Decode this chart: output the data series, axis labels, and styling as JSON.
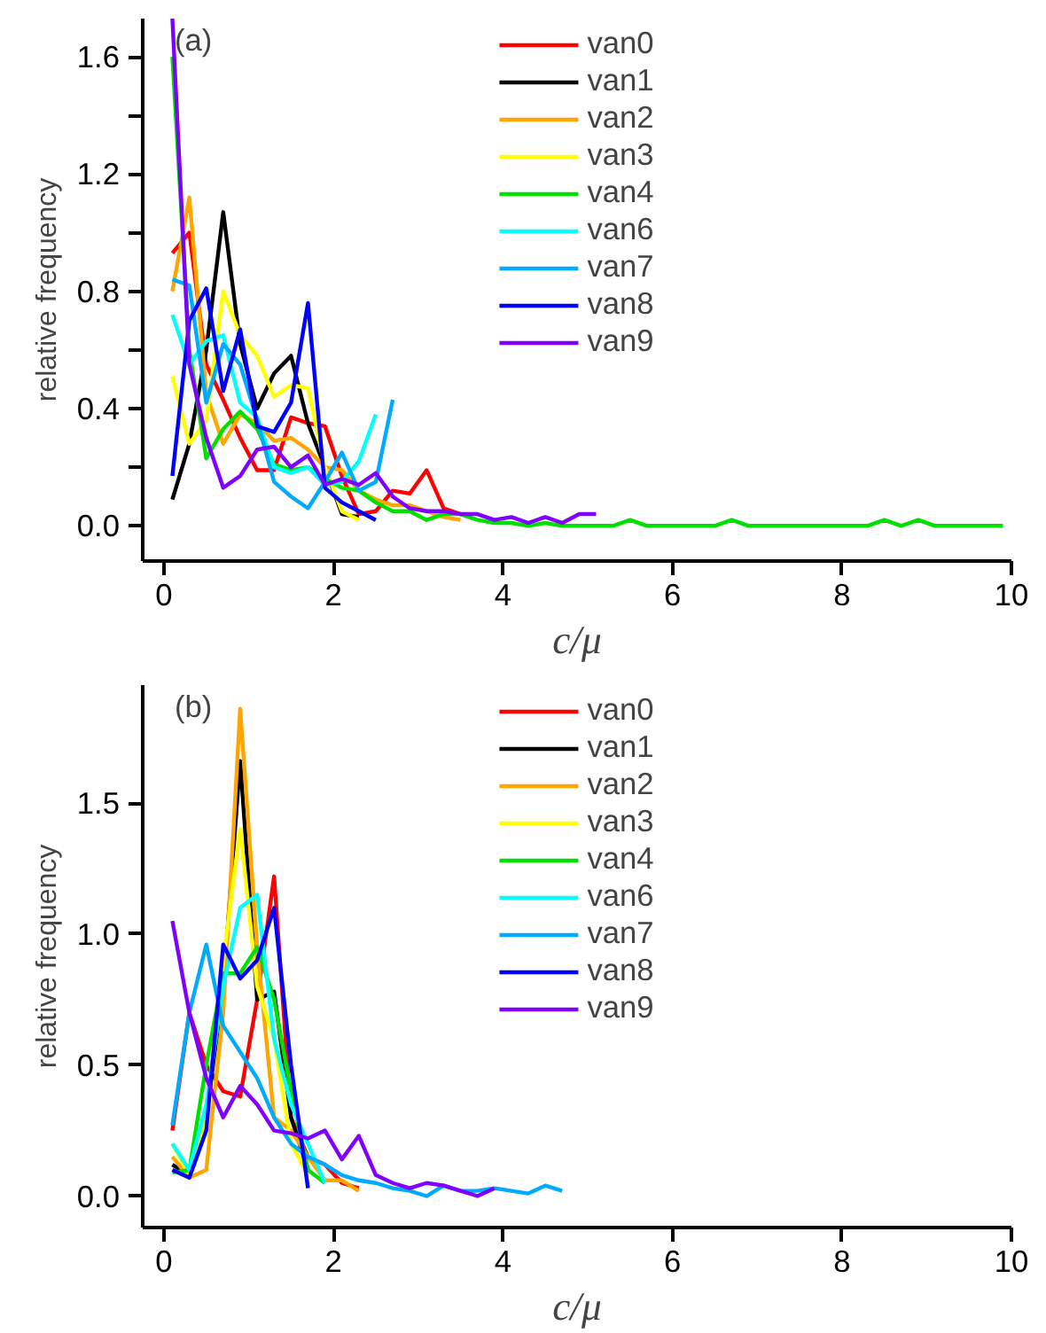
{
  "chart_data": [
    {
      "type": "line",
      "xlabel": "c/μ",
      "ylabel": "relative frequency",
      "annotations": [
        "(a)"
      ],
      "xlim": [
        -0.25,
        10
      ],
      "ylim": [
        -0.12,
        1.73
      ],
      "xticks": [
        0,
        2,
        4,
        6,
        8,
        10
      ],
      "yticks": [
        {
          "value": 0,
          "label": "0.0"
        },
        {
          "value": 0.2,
          "label": null
        },
        {
          "value": 0.4,
          "label": "0.4"
        },
        {
          "value": 0.6,
          "label": null
        },
        {
          "value": 0.8,
          "label": "0.8"
        },
        {
          "value": 1.0,
          "label": null
        },
        {
          "value": 1.2,
          "label": "1.2"
        },
        {
          "value": 1.4,
          "label": null
        },
        {
          "value": 1.6,
          "label": "1.6"
        }
      ],
      "grid": false,
      "legend": "top",
      "series": [
        {
          "name": "van0",
          "color": "#ff0000",
          "x": [
            0.1,
            0.3,
            0.5,
            0.7,
            0.9,
            1.1,
            1.3,
            1.5,
            1.7,
            1.9,
            2.1,
            2.3,
            2.5,
            2.7,
            2.9,
            3.1,
            3.3,
            3.5
          ],
          "values": [
            0.93,
            1.0,
            0.55,
            0.43,
            0.3,
            0.19,
            0.19,
            0.37,
            0.35,
            0.34,
            0.17,
            0.04,
            0.05,
            0.12,
            0.11,
            0.19,
            0.06,
            0.04
          ]
        },
        {
          "name": "van1",
          "color": "#000000",
          "x": [
            0.1,
            0.3,
            0.5,
            0.7,
            0.9,
            1.1,
            1.3,
            1.5,
            1.7,
            1.9,
            2.1,
            2.3
          ],
          "values": [
            0.09,
            0.28,
            0.6,
            1.07,
            0.62,
            0.4,
            0.52,
            0.58,
            0.35,
            0.2,
            0.04,
            0.03
          ]
        },
        {
          "name": "van2",
          "color": "#ffa500",
          "x": [
            0.1,
            0.3,
            0.5,
            0.7,
            0.9,
            1.1,
            1.3,
            1.5,
            1.7,
            1.9,
            2.1,
            2.3,
            2.5,
            2.7,
            2.9,
            3.1,
            3.3,
            3.5
          ],
          "values": [
            0.8,
            1.12,
            0.45,
            0.28,
            0.38,
            0.35,
            0.29,
            0.3,
            0.26,
            0.2,
            0.19,
            0.12,
            0.09,
            0.07,
            0.07,
            0.05,
            0.03,
            0.02
          ]
        },
        {
          "name": "van3",
          "color": "#ffff00",
          "x": [
            0.1,
            0.3,
            0.5,
            0.7,
            0.9,
            1.1,
            1.3,
            1.5,
            1.7,
            1.9,
            2.1,
            2.3
          ],
          "values": [
            0.51,
            0.28,
            0.36,
            0.8,
            0.65,
            0.58,
            0.44,
            0.48,
            0.47,
            0.2,
            0.05,
            0.02
          ]
        },
        {
          "name": "van4",
          "color": "#00e000",
          "x": [
            0.1,
            0.3,
            0.5,
            0.7,
            0.9,
            1.1,
            1.3,
            1.5,
            1.7,
            1.9,
            2.1,
            2.3,
            2.5,
            2.7,
            2.9,
            3.1,
            3.3,
            3.5,
            3.7,
            3.9,
            4.1,
            4.3,
            4.5,
            4.7,
            4.9,
            5.1,
            5.3,
            5.5,
            5.7,
            5.9,
            6.1,
            6.3,
            6.5,
            6.7,
            6.9,
            7.1,
            7.3,
            7.5,
            7.7,
            7.9,
            8.1,
            8.3,
            8.5,
            8.7,
            8.9,
            9.1,
            9.3,
            9.5,
            9.7,
            9.9
          ],
          "values": [
            1.6,
            0.6,
            0.23,
            0.33,
            0.39,
            0.33,
            0.21,
            0.19,
            0.2,
            0.16,
            0.13,
            0.12,
            0.08,
            0.05,
            0.05,
            0.02,
            0.04,
            0.04,
            0.02,
            0.01,
            0.01,
            0.0,
            0.01,
            0.0,
            0.0,
            0.0,
            0.0,
            0.02,
            0.0,
            0.0,
            0.0,
            0.0,
            0.0,
            0.02,
            0.0,
            0.0,
            0.0,
            0.0,
            0.0,
            0.0,
            0.0,
            0.0,
            0.02,
            0.0,
            0.02,
            0.0,
            0.0,
            0.0,
            0.0,
            0.0
          ]
        },
        {
          "name": "van6",
          "color": "#00ffff",
          "x": [
            0.1,
            0.3,
            0.5,
            0.7,
            0.9,
            1.1,
            1.3,
            1.5,
            1.7,
            1.9,
            2.1,
            2.3,
            2.5
          ],
          "values": [
            0.72,
            0.55,
            0.63,
            0.65,
            0.42,
            0.37,
            0.2,
            0.18,
            0.2,
            0.14,
            0.15,
            0.22,
            0.38
          ]
        },
        {
          "name": "van7",
          "color": "#00aaff",
          "x": [
            0.1,
            0.3,
            0.5,
            0.7,
            0.9,
            1.1,
            1.3,
            1.5,
            1.7,
            1.9,
            2.1,
            2.3,
            2.5,
            2.7
          ],
          "values": [
            0.84,
            0.82,
            0.42,
            0.62,
            0.55,
            0.36,
            0.15,
            0.1,
            0.06,
            0.15,
            0.25,
            0.12,
            0.15,
            0.43
          ]
        },
        {
          "name": "van8",
          "color": "#0000ff",
          "x": [
            0.1,
            0.3,
            0.5,
            0.7,
            0.9,
            1.1,
            1.3,
            1.5,
            1.7,
            1.9,
            2.1,
            2.3,
            2.5
          ],
          "values": [
            0.17,
            0.7,
            0.81,
            0.46,
            0.67,
            0.34,
            0.32,
            0.42,
            0.76,
            0.13,
            0.08,
            0.05,
            0.02
          ]
        },
        {
          "name": "van9",
          "color": "#7f00ff",
          "x": [
            0.1,
            0.3,
            0.5,
            0.7,
            0.9,
            1.1,
            1.3,
            1.5,
            1.7,
            1.9,
            2.1,
            2.3,
            2.5,
            2.7,
            2.9,
            3.1,
            3.3,
            3.5,
            3.7,
            3.9,
            4.1,
            4.3,
            4.5,
            4.7,
            4.9,
            5.1
          ],
          "values": [
            1.73,
            0.55,
            0.3,
            0.13,
            0.17,
            0.26,
            0.27,
            0.2,
            0.24,
            0.14,
            0.16,
            0.14,
            0.18,
            0.1,
            0.06,
            0.05,
            0.05,
            0.04,
            0.04,
            0.02,
            0.03,
            0.01,
            0.03,
            0.01,
            0.04,
            0.04
          ]
        }
      ]
    },
    {
      "type": "line",
      "xlabel": "c/μ",
      "ylabel": "relative frequency",
      "annotations": [
        "(b)"
      ],
      "xlim": [
        -0.25,
        10
      ],
      "ylim": [
        -0.12,
        1.95
      ],
      "xticks": [
        0,
        2,
        4,
        6,
        8,
        10
      ],
      "yticks": [
        {
          "value": 0,
          "label": "0.0"
        },
        {
          "value": 0.5,
          "label": "0.5"
        },
        {
          "value": 1.0,
          "label": "1.0"
        },
        {
          "value": 1.5,
          "label": "1.5"
        }
      ],
      "grid": false,
      "legend": "top",
      "series": [
        {
          "name": "van0",
          "color": "#ff0000",
          "x": [
            0.1,
            0.3,
            0.5,
            0.7,
            0.9,
            1.1,
            1.3,
            1.5,
            1.7,
            1.9,
            2.1,
            2.3
          ],
          "values": [
            0.25,
            0.7,
            0.5,
            0.4,
            0.38,
            0.75,
            1.22,
            0.3,
            0.15,
            0.12,
            0.05,
            0.03
          ]
        },
        {
          "name": "van1",
          "color": "#000000",
          "x": [
            0.1,
            0.3,
            0.5,
            0.7,
            0.9,
            1.1,
            1.3,
            1.5,
            1.7
          ],
          "values": [
            0.12,
            0.08,
            0.3,
            0.8,
            1.66,
            0.75,
            0.78,
            0.3,
            0.1
          ]
        },
        {
          "name": "van2",
          "color": "#ffa500",
          "x": [
            0.1,
            0.3,
            0.5,
            0.7,
            0.9,
            1.1,
            1.3,
            1.5,
            1.7,
            1.9,
            2.1,
            2.3
          ],
          "values": [
            0.15,
            0.07,
            0.1,
            0.7,
            1.86,
            0.95,
            0.3,
            0.25,
            0.15,
            0.06,
            0.06,
            0.02
          ]
        },
        {
          "name": "van3",
          "color": "#ffff00",
          "x": [
            0.1,
            0.3,
            0.5,
            0.7,
            0.9,
            1.1,
            1.3,
            1.5,
            1.7
          ],
          "values": [
            0.2,
            0.08,
            0.3,
            0.9,
            1.4,
            0.8,
            0.6,
            0.2,
            0.08
          ]
        },
        {
          "name": "van4",
          "color": "#00e000",
          "x": [
            0.1,
            0.3,
            0.5,
            0.7,
            0.9,
            1.1,
            1.3,
            1.5,
            1.7,
            1.9
          ],
          "values": [
            0.09,
            0.1,
            0.5,
            0.85,
            0.85,
            0.95,
            0.75,
            0.4,
            0.1,
            0.05
          ]
        },
        {
          "name": "van6",
          "color": "#00ffff",
          "x": [
            0.1,
            0.3,
            0.5,
            0.7,
            0.9,
            1.1,
            1.3,
            1.5,
            1.7,
            1.9
          ],
          "values": [
            0.2,
            0.1,
            0.35,
            0.8,
            1.1,
            1.15,
            0.6,
            0.35,
            0.2,
            0.05
          ]
        },
        {
          "name": "van7",
          "color": "#00aaff",
          "x": [
            0.1,
            0.3,
            0.5,
            0.7,
            0.9,
            1.1,
            1.3,
            1.5,
            1.7,
            1.9,
            2.1,
            2.3,
            2.5,
            2.7,
            2.9,
            3.1,
            3.3,
            3.5,
            3.7,
            3.9,
            4.1,
            4.3,
            4.5,
            4.7
          ],
          "values": [
            0.27,
            0.7,
            0.96,
            0.65,
            0.55,
            0.45,
            0.3,
            0.2,
            0.15,
            0.12,
            0.08,
            0.06,
            0.05,
            0.03,
            0.02,
            0.0,
            0.04,
            0.02,
            0.02,
            0.03,
            0.02,
            0.01,
            0.04,
            0.02
          ]
        },
        {
          "name": "van8",
          "color": "#0000ff",
          "x": [
            0.1,
            0.3,
            0.5,
            0.7,
            0.9,
            1.1,
            1.3,
            1.5,
            1.7
          ],
          "values": [
            0.1,
            0.07,
            0.25,
            0.96,
            0.83,
            0.9,
            1.1,
            0.5,
            0.03
          ]
        },
        {
          "name": "van9",
          "color": "#7f00ff",
          "x": [
            0.1,
            0.3,
            0.5,
            0.7,
            0.9,
            1.1,
            1.3,
            1.5,
            1.7,
            1.9,
            2.1,
            2.3,
            2.5,
            2.7,
            2.9,
            3.1,
            3.3,
            3.5,
            3.7,
            3.9
          ],
          "values": [
            1.05,
            0.7,
            0.45,
            0.3,
            0.42,
            0.35,
            0.25,
            0.24,
            0.22,
            0.25,
            0.14,
            0.23,
            0.08,
            0.05,
            0.03,
            0.05,
            0.04,
            0.02,
            0.0,
            0.03
          ]
        }
      ]
    }
  ]
}
